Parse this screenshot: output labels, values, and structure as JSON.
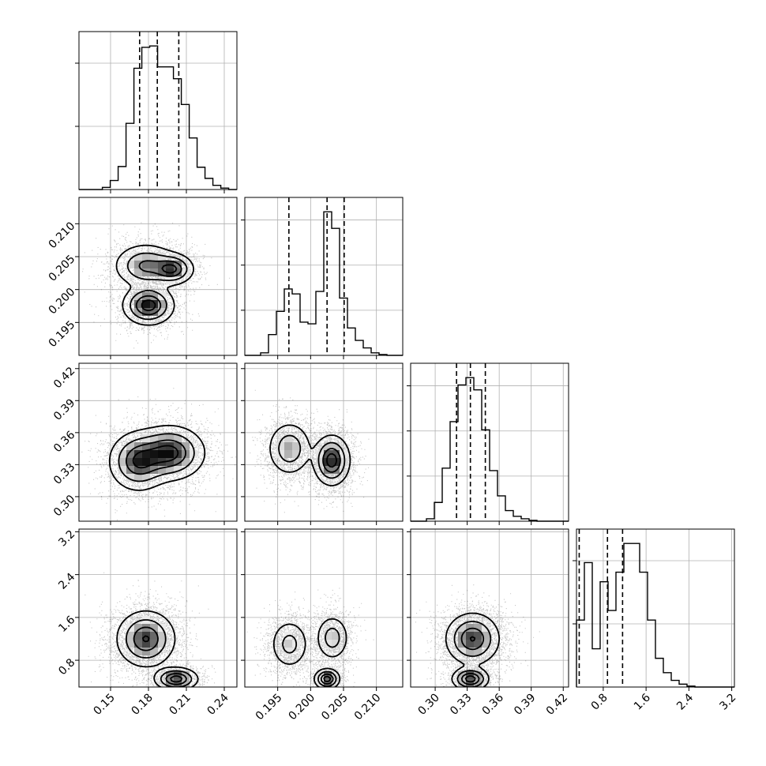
{
  "chart_data": {
    "type": "corner",
    "title": "",
    "parameters": [
      {
        "range": [
          0.125,
          0.25
        ],
        "ticks": [
          0.15,
          0.18,
          0.21,
          0.24
        ],
        "tick_labels": [
          "0.15",
          "0.18",
          "0.21",
          "0.24"
        ]
      },
      {
        "range": [
          0.19,
          0.214
        ],
        "ticks": [
          0.195,
          0.2,
          0.205,
          0.21
        ],
        "tick_labels": [
          "0.195",
          "0.200",
          "0.205",
          "0.210"
        ]
      },
      {
        "range": [
          0.277,
          0.425
        ],
        "ticks": [
          0.3,
          0.33,
          0.36,
          0.39,
          0.42
        ],
        "tick_labels": [
          "0.30",
          "0.33",
          "0.36",
          "0.39",
          "0.42"
        ]
      },
      {
        "range": [
          0.3,
          3.25
        ],
        "ticks": [
          0.8,
          1.6,
          2.4,
          3.2
        ],
        "tick_labels": [
          "0.8",
          "1.6",
          "2.4",
          "3.2"
        ]
      }
    ],
    "histograms": [
      {
        "bin_min": 0.131,
        "bin_width": 0.00625,
        "counts": [
          0,
          0,
          0.3,
          1.3,
          3.3,
          9.5,
          17.4,
          20.4,
          20.6,
          17.6,
          17.6,
          15.9,
          12.2,
          7.4,
          3.2,
          1.6,
          0.6,
          0.2,
          0
        ],
        "quantiles": [
          0.173,
          0.187,
          0.204
        ],
        "grid_ticks": [
          0.5,
          1.0
        ]
      },
      {
        "bin_min": 0.19,
        "bin_width": 0.0012,
        "counts": [
          0,
          0,
          0.3,
          2.5,
          5.3,
          8.0,
          7.4,
          4.0,
          3.8,
          7.7,
          17.3,
          15.3,
          6.9,
          3.3,
          1.8,
          0.9,
          0.3,
          0.1,
          0,
          0
        ],
        "quantiles": [
          0.1967,
          0.2025,
          0.2051
        ],
        "grid_ticks": [
          1.5,
          3.0,
          4.5
        ]
      },
      {
        "bin_min": 0.277,
        "bin_width": 0.0074,
        "counts": [
          0,
          0,
          0.3,
          2.3,
          6.5,
          12.2,
          16.7,
          17.6,
          16.1,
          11.2,
          6.2,
          3.1,
          1.3,
          0.6,
          0.3,
          0.1,
          0,
          0,
          0,
          0
        ],
        "quantiles": [
          0.32,
          0.333,
          0.347
        ],
        "grid_ticks": [
          0.7,
          1.4,
          2.1
        ]
      },
      {
        "bin_min": 0.3,
        "bin_width": 0.1475,
        "counts": [
          0.7,
          1.3,
          0.4,
          1.1,
          0.8,
          1.2,
          1.5,
          1.5,
          1.2,
          0.7,
          0.3,
          0.15,
          0.07,
          0.03,
          0.01,
          0,
          0,
          0,
          0,
          0
        ],
        "quantiles": [
          0.351,
          0.879,
          1.161
        ],
        "grid_ticks": [
          0.8,
          1.6
        ]
      }
    ],
    "scatter_2d": [
      {
        "x_param": 0,
        "y_param": 1,
        "components": [
          {
            "mean": [
              0.178,
              0.2036
            ],
            "sd": [
              0.012,
              0.0016
            ],
            "weight": 0.38
          },
          {
            "mean": [
              0.199,
              0.2031
            ],
            "sd": [
              0.008,
              0.0011
            ],
            "weight": 0.22
          },
          {
            "mean": [
              0.18,
              0.1976
            ],
            "sd": [
              0.0095,
              0.0014
            ],
            "weight": 0.4
          }
        ]
      },
      {
        "x_param": 0,
        "y_param": 2,
        "components": [
          {
            "mean": [
              0.172,
              0.333
            ],
            "sd": [
              0.011,
              0.013
            ],
            "weight": 0.45
          },
          {
            "mean": [
              0.197,
              0.341
            ],
            "sd": [
              0.013,
              0.012
            ],
            "weight": 0.55
          }
        ]
      },
      {
        "x_param": 1,
        "y_param": 2,
        "components": [
          {
            "mean": [
              0.1968,
              0.345
            ],
            "sd": [
              0.0016,
              0.012
            ],
            "weight": 0.42
          },
          {
            "mean": [
              0.2032,
              0.334
            ],
            "sd": [
              0.0013,
              0.011
            ],
            "weight": 0.58
          }
        ]
      },
      {
        "x_param": 0,
        "y_param": 3,
        "components": [
          {
            "mean": [
              0.178,
              1.2
            ],
            "sd": [
              0.011,
              0.25
            ],
            "weight": 0.75
          },
          {
            "mean": [
              0.202,
              0.45
            ],
            "sd": [
              0.008,
              0.1
            ],
            "weight": 0.25
          }
        ]
      },
      {
        "x_param": 1,
        "y_param": 3,
        "components": [
          {
            "mean": [
              0.1968,
              1.1
            ],
            "sd": [
              0.0014,
              0.22
            ],
            "weight": 0.4
          },
          {
            "mean": [
              0.2033,
              1.22
            ],
            "sd": [
              0.0012,
              0.2
            ],
            "weight": 0.35
          },
          {
            "mean": [
              0.2025,
              0.45
            ],
            "sd": [
              0.0009,
              0.09
            ],
            "weight": 0.25
          }
        ]
      },
      {
        "x_param": 2,
        "y_param": 3,
        "components": [
          {
            "mean": [
              0.335,
              1.2
            ],
            "sd": [
              0.012,
              0.23
            ],
            "weight": 0.75
          },
          {
            "mean": [
              0.333,
              0.45
            ],
            "sd": [
              0.008,
              0.1
            ],
            "weight": 0.25
          }
        ]
      }
    ],
    "grid": true,
    "histogram_style": "step",
    "quantile_style": "dashed",
    "contour_levels": 4
  }
}
